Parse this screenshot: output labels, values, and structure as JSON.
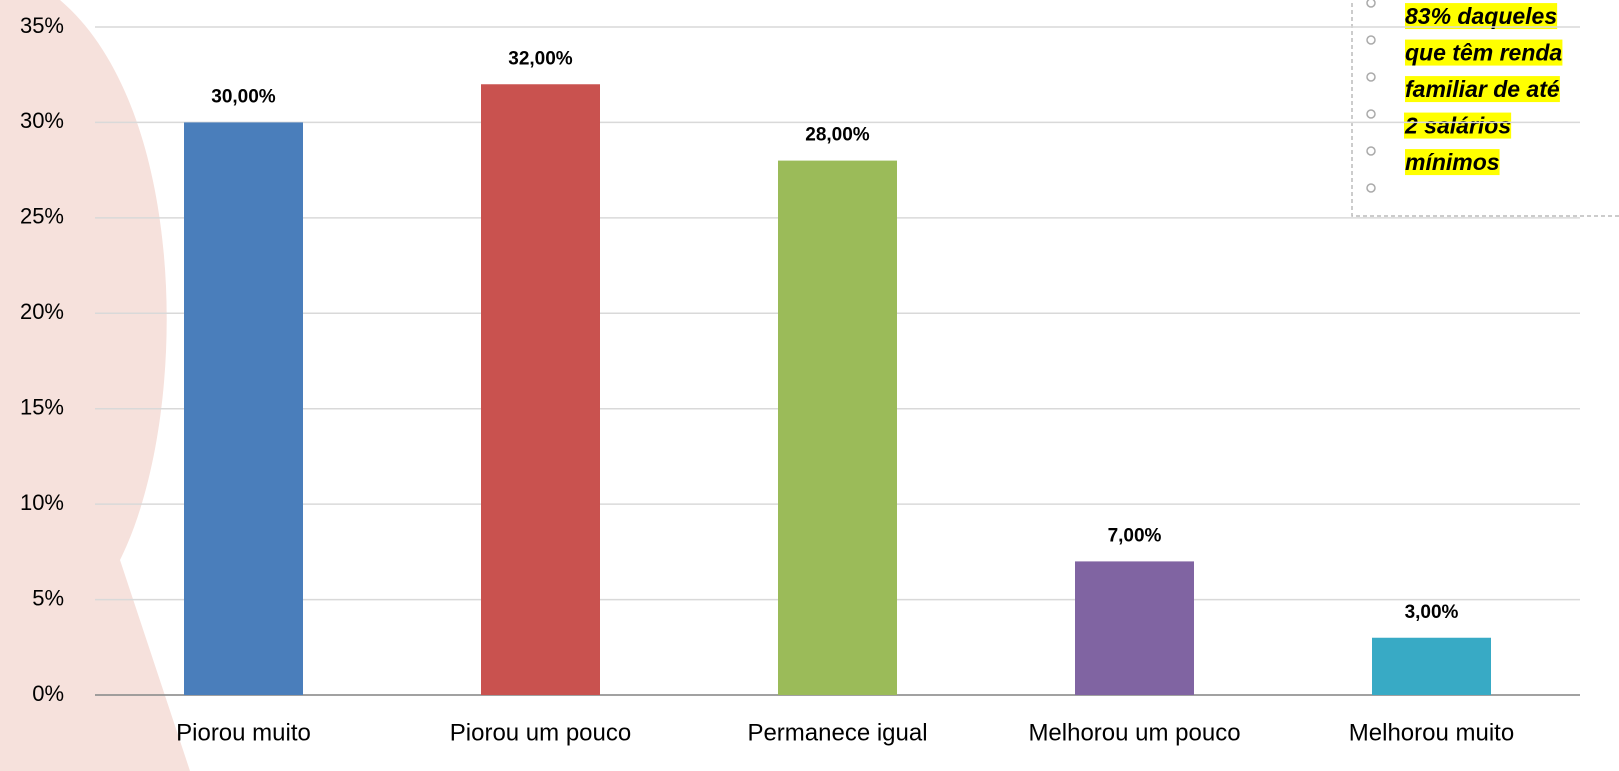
{
  "chart_data": {
    "type": "bar",
    "categories": [
      "Piorou muito",
      "Piorou um pouco",
      "Permanece igual",
      "Melhorou um pouco",
      "Melhorou muito"
    ],
    "values": [
      30,
      32,
      28,
      7,
      3
    ],
    "value_labels": [
      "30,00%",
      "32,00%",
      "28,00%",
      "7,00%",
      "3,00%"
    ],
    "colors": [
      "#4a7ebb",
      "#c9524f",
      "#9bbb59",
      "#8064a2",
      "#38aac5"
    ],
    "ylim": [
      0,
      35
    ],
    "yticks": [
      {
        "value": 0,
        "label": "0%"
      },
      {
        "value": 5,
        "label": "5%"
      },
      {
        "value": 10,
        "label": "10%"
      },
      {
        "value": 15,
        "label": "15%"
      },
      {
        "value": 20,
        "label": "20%"
      },
      {
        "value": 25,
        "label": "25%"
      },
      {
        "value": 30,
        "label": "30%"
      },
      {
        "value": 35,
        "label": "35%"
      }
    ],
    "grid": true,
    "annotation": [
      "83% daqueles",
      "que têm renda",
      "familiar de até",
      "2 salários",
      "mínimos"
    ]
  }
}
